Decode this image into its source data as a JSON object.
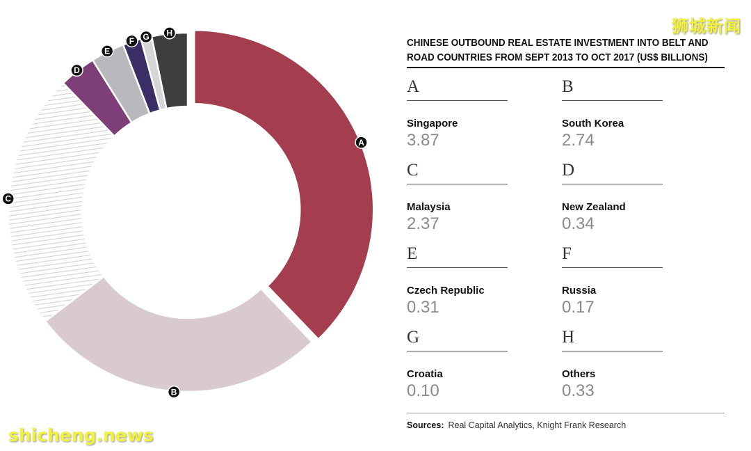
{
  "chart_data": {
    "type": "pie",
    "title": "CHINESE OUTBOUND REAL ESTATE INVESTMENT INTO BELT AND ROAD COUNTRIES FROM SEPT 2013 TO OCT 2017 (US$ BILLIONS)",
    "slices": [
      {
        "letter": "A",
        "country": "Singapore",
        "value": 3.87,
        "value_text": "3.87",
        "color": "#a43e4e",
        "exploded": true
      },
      {
        "letter": "B",
        "country": "South Korea",
        "value": 2.74,
        "value_text": "2.74",
        "color": "#d9cad0",
        "exploded": false
      },
      {
        "letter": "C",
        "country": "Malaysia",
        "value": 2.37,
        "value_text": "2.37",
        "color": "#ffffff",
        "pattern": "hatched",
        "exploded": false
      },
      {
        "letter": "D",
        "country": "New Zealand",
        "value": 0.34,
        "value_text": "0.34",
        "color": "#7e3f78",
        "exploded": false
      },
      {
        "letter": "E",
        "country": "Czech Republic",
        "value": 0.31,
        "value_text": "0.31",
        "color": "#b9b9bd",
        "exploded": false
      },
      {
        "letter": "F",
        "country": "Russia",
        "value": 0.17,
        "value_text": "0.17",
        "color": "#3b2e66",
        "exploded": false
      },
      {
        "letter": "G",
        "country": "Croatia",
        "value": 0.1,
        "value_text": "0.10",
        "color": "#d6d6d8",
        "exploded": false
      },
      {
        "letter": "H",
        "country": "Others",
        "value": 0.33,
        "value_text": "0.33",
        "color": "#3e3e3e",
        "exploded": false
      }
    ],
    "legend_placement": "right"
  },
  "sources": {
    "label": "Sources:",
    "text": "Real Capital Analytics, Knight Frank Research"
  },
  "branding": {
    "top_right": "狮城新闻",
    "bottom_left": "shicheng.news"
  },
  "colors": {
    "marker_fill": "#111111",
    "text": "#111111",
    "value_text": "#8a8a8a"
  }
}
